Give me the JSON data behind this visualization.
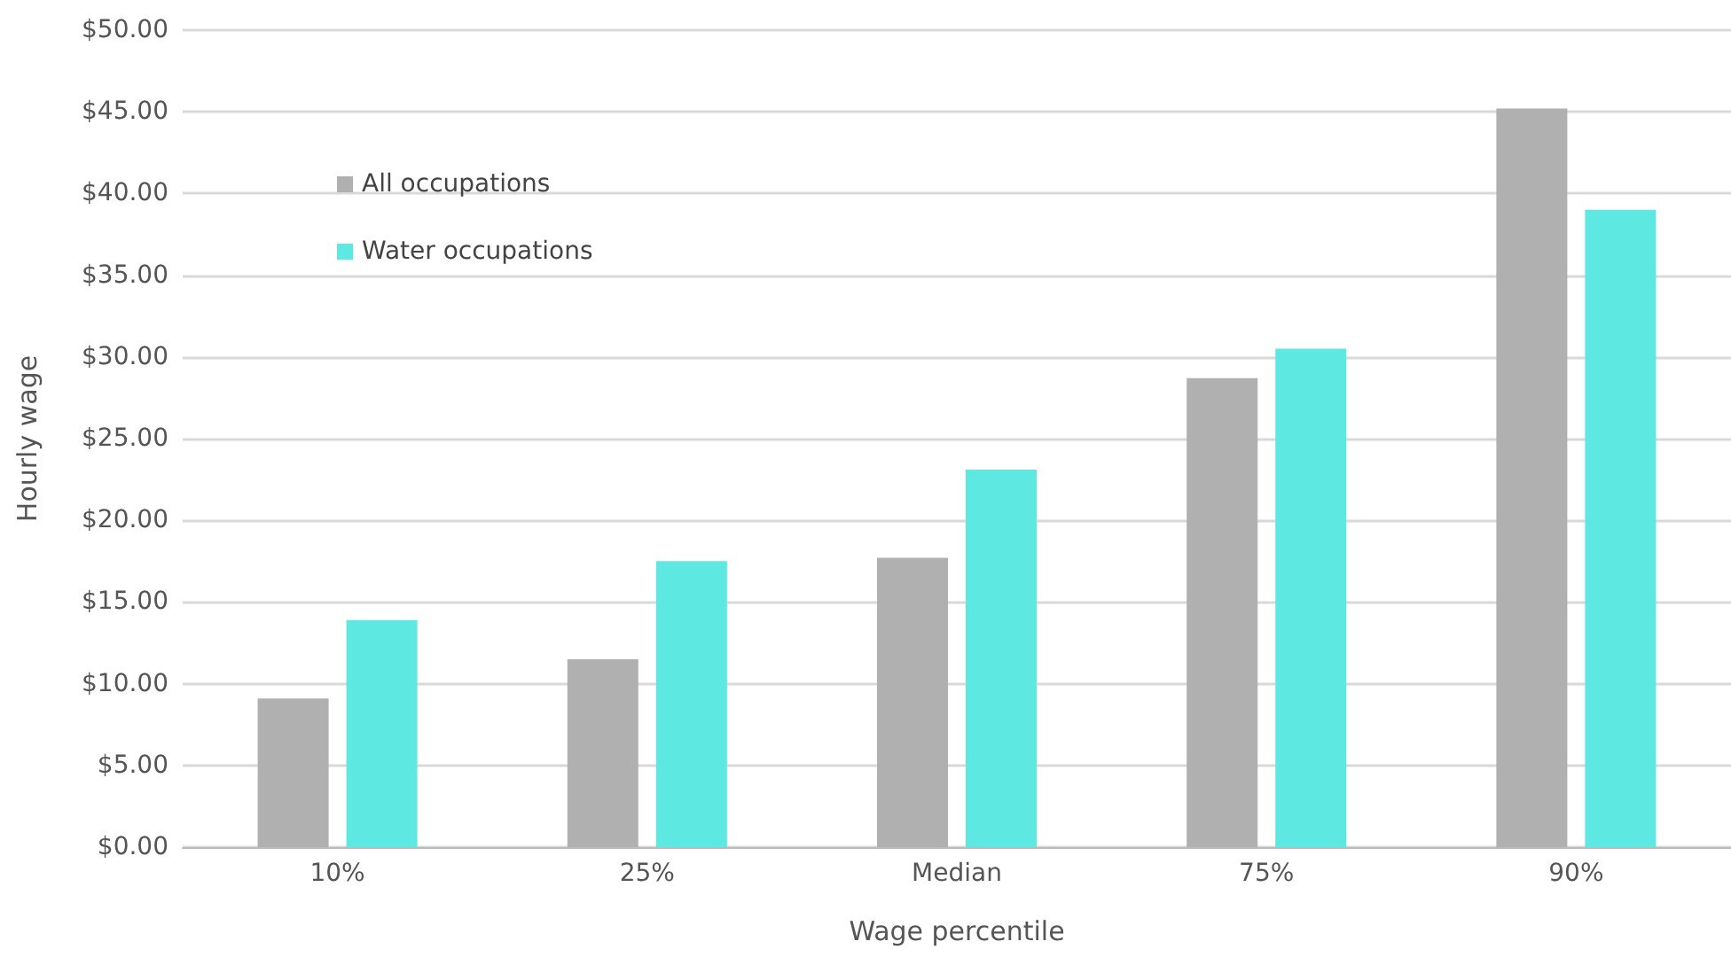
{
  "chart_data": {
    "type": "bar",
    "xlabel": "Wage percentile",
    "ylabel": "Hourly wage",
    "categories": [
      "10%",
      "25%",
      "Median",
      "75%",
      "90%"
    ],
    "series": [
      {
        "name": "All occupations",
        "color": "#b0b0b0",
        "values": [
          9.1,
          11.5,
          17.7,
          28.7,
          45.2
        ]
      },
      {
        "name": "Water occupations",
        "color": "#5ee8e2",
        "values": [
          13.9,
          17.5,
          23.1,
          30.5,
          39.0
        ]
      }
    ],
    "ylim": [
      0,
      50
    ],
    "yticks": [
      {
        "value": 0,
        "label": "$0.00"
      },
      {
        "value": 5,
        "label": "$5.00"
      },
      {
        "value": 10,
        "label": "$10.00"
      },
      {
        "value": 15,
        "label": "$15.00"
      },
      {
        "value": 20,
        "label": "$20.00"
      },
      {
        "value": 25,
        "label": "$25.00"
      },
      {
        "value": 30,
        "label": "$30.00"
      },
      {
        "value": 35,
        "label": "$35.00"
      },
      {
        "value": 40,
        "label": "$40.00"
      },
      {
        "value": 45,
        "label": "$45.00"
      },
      {
        "value": 50,
        "label": "$50.00"
      }
    ],
    "grid": "y",
    "legend": "top left"
  }
}
